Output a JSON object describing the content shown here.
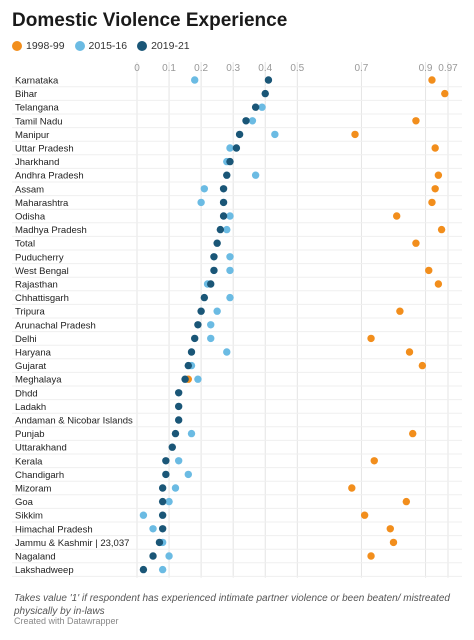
{
  "chart_data": {
    "type": "scatter",
    "title": "Domestic Violence Experience",
    "legend": [
      {
        "name": "1998-99",
        "color": "#f28e1c"
      },
      {
        "name": "2015-16",
        "color": "#6bbbe3"
      },
      {
        "name": "2019-21",
        "color": "#1a5677"
      }
    ],
    "x_ticks": [
      {
        "value": 0,
        "label": "0"
      },
      {
        "value": 0.1,
        "label": "0.1"
      },
      {
        "value": 0.2,
        "label": "0.2"
      },
      {
        "value": 0.3,
        "label": "0.3"
      },
      {
        "value": 0.4,
        "label": "0.4"
      },
      {
        "value": 0.5,
        "label": "0.5"
      },
      {
        "value": 0.7,
        "label": "0.7"
      },
      {
        "value": 0.9,
        "label": "0.9"
      },
      {
        "value": 0.97,
        "label": "0.97"
      }
    ],
    "xlim": [
      0,
      0.97
    ],
    "categories": [
      "Karnataka",
      "Bihar",
      "Telangana",
      "Tamil Nadu",
      "Manipur",
      "Uttar Pradesh",
      "Jharkhand",
      "Andhra Pradesh",
      "Assam",
      "Maharashtra",
      "Odisha",
      "Madhya Pradesh",
      "Total",
      "Puducherry",
      "West Bengal",
      "Rajasthan",
      "Chhattisgarh",
      "Tripura",
      "Arunachal Pradesh",
      "Delhi",
      "Haryana",
      "Gujarat",
      "Meghalaya",
      "Dhdd",
      "Ladakh",
      "Andaman & Nicobar Islands",
      "Punjab",
      "Uttarakhand",
      "Kerala",
      "Chandigarh",
      "Mizoram",
      "Goa",
      "Sikkim",
      "Himachal Pradesh",
      "Jammu & Kashmir | 23,037",
      "Nagaland",
      "Lakshadweep"
    ],
    "series": [
      {
        "name": "1998-99",
        "color": "#f28e1c",
        "values": [
          0.92,
          0.96,
          null,
          0.87,
          0.68,
          0.93,
          null,
          0.94,
          0.93,
          0.92,
          0.81,
          0.95,
          0.87,
          null,
          0.91,
          0.94,
          null,
          0.82,
          null,
          0.73,
          0.85,
          0.89,
          0.16,
          null,
          null,
          null,
          0.86,
          null,
          0.74,
          null,
          0.67,
          0.84,
          0.71,
          0.79,
          0.8,
          0.73,
          null
        ]
      },
      {
        "name": "2015-16",
        "color": "#6bbbe3",
        "values": [
          0.18,
          null,
          0.39,
          0.36,
          0.43,
          0.29,
          0.28,
          0.37,
          0.21,
          0.2,
          0.29,
          0.28,
          null,
          0.29,
          0.29,
          0.22,
          0.29,
          0.25,
          0.23,
          0.23,
          0.28,
          0.17,
          0.19,
          null,
          null,
          null,
          0.17,
          null,
          0.13,
          0.16,
          0.12,
          0.1,
          0.02,
          0.05,
          0.08,
          0.1,
          0.08
        ]
      },
      {
        "name": "2019-21",
        "color": "#1a5677",
        "values": [
          0.41,
          0.4,
          0.37,
          0.34,
          0.32,
          0.31,
          0.29,
          0.28,
          0.27,
          0.27,
          0.27,
          0.26,
          0.25,
          0.24,
          0.24,
          0.23,
          0.21,
          0.2,
          0.19,
          0.18,
          0.17,
          0.16,
          0.15,
          0.13,
          0.13,
          0.13,
          0.12,
          0.11,
          0.09,
          0.09,
          0.08,
          0.08,
          0.08,
          0.08,
          0.07,
          0.05,
          0.02
        ]
      }
    ]
  },
  "note": "Takes value '1' if respondent has experienced intimate partner violence or been beaten/ mistreated physically by in-laws",
  "credit": "Created with Datawrapper"
}
